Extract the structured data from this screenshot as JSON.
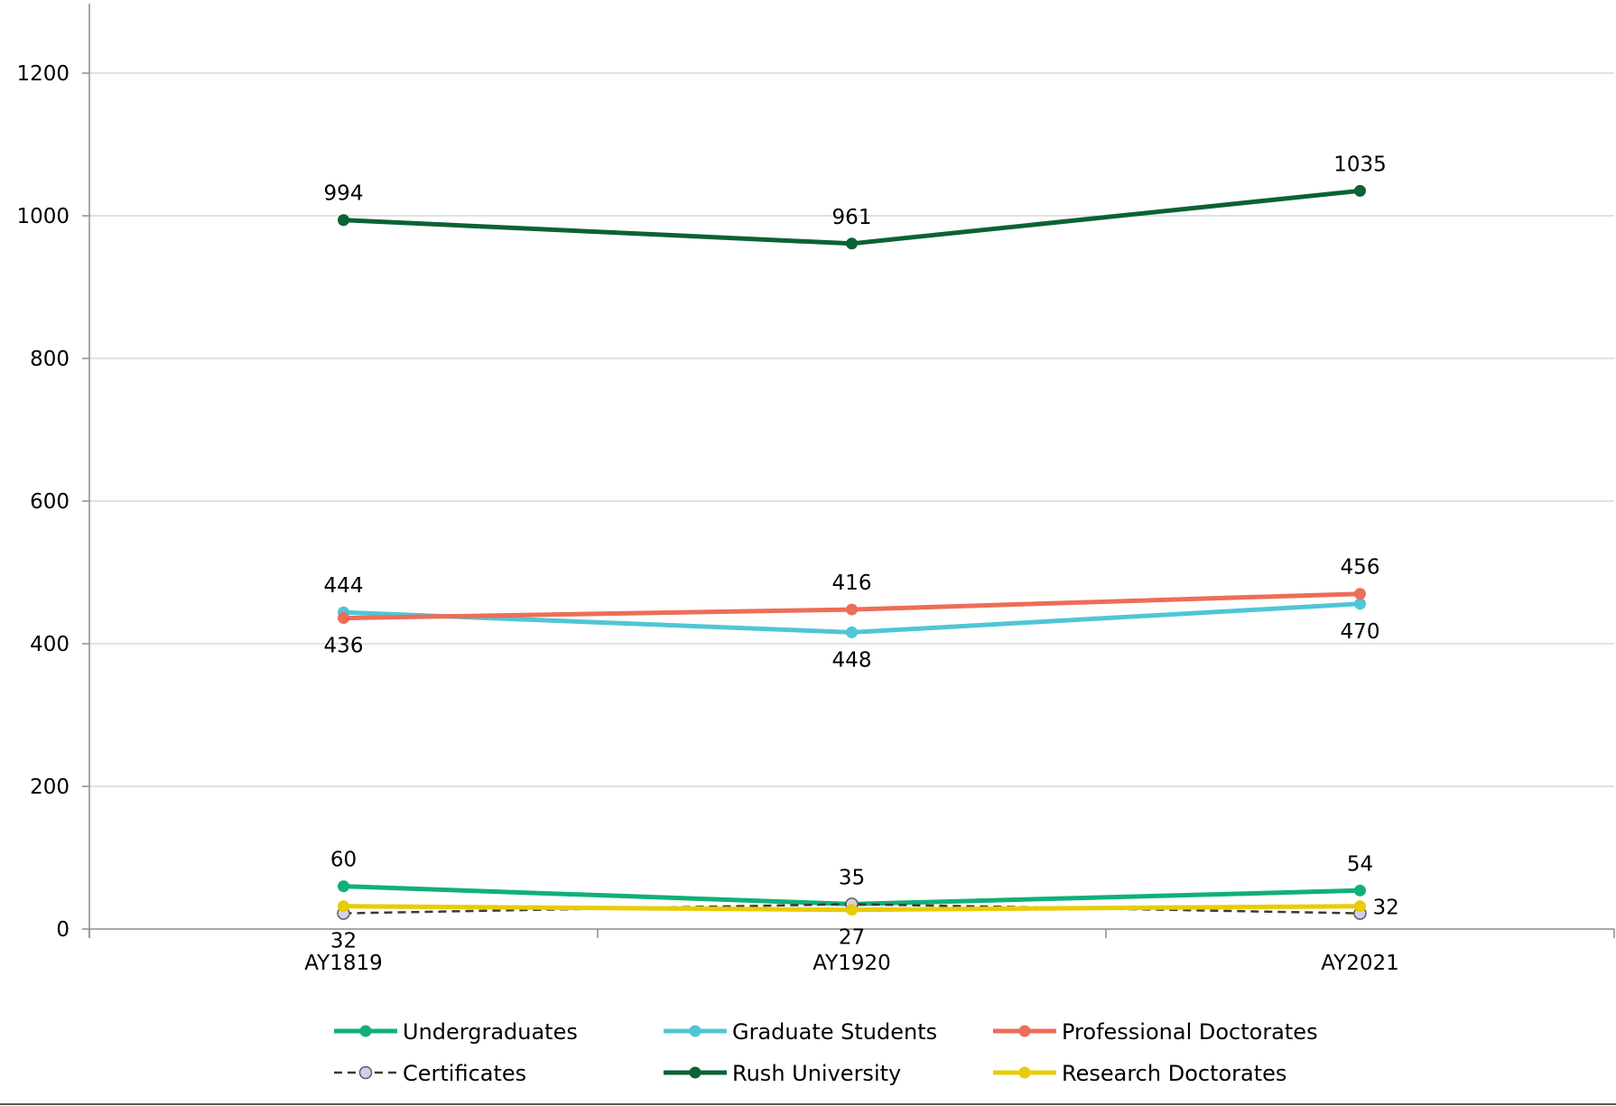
{
  "chart_data": {
    "type": "line",
    "title": "",
    "xlabel": "",
    "ylabel": "",
    "categories": [
      "AY1819",
      "AY1920",
      "AY2021"
    ],
    "ylim": [
      0,
      1200
    ],
    "yticks": [
      0,
      200,
      400,
      600,
      800,
      1000,
      1200
    ],
    "grid": true,
    "legend_position": "bottom",
    "series": [
      {
        "name": "Undergraduates",
        "values": [
          60,
          35,
          54
        ],
        "color": "#10b079",
        "dashed": false,
        "marker": "filled"
      },
      {
        "name": "Graduate Students",
        "values": [
          444,
          416,
          456
        ],
        "color": "#4fc6d6",
        "dashed": false,
        "marker": "filled"
      },
      {
        "name": "Professional Doctorates",
        "values": [
          436,
          448,
          470
        ],
        "color": "#ee6d57",
        "dashed": false,
        "marker": "filled"
      },
      {
        "name": "Certificates",
        "values": [
          22,
          35,
          22
        ],
        "color": "#3f3a2c",
        "dashed": true,
        "marker": "open",
        "marker_fill": "#d9cdef"
      },
      {
        "name": "Rush University",
        "values": [
          994,
          961,
          1035
        ],
        "color": "#0b6233",
        "dashed": false,
        "marker": "filled"
      },
      {
        "name": "Research Doctorates",
        "values": [
          32,
          27,
          32
        ],
        "color": "#e8cc05",
        "dashed": false,
        "marker": "filled"
      }
    ],
    "data_labels": [
      {
        "text": "994",
        "category": "AY1819",
        "y": 994,
        "place": "above"
      },
      {
        "text": "961",
        "category": "AY1920",
        "y": 961,
        "place": "above"
      },
      {
        "text": "1035",
        "category": "AY2021",
        "y": 1035,
        "place": "above"
      },
      {
        "text": "444",
        "category": "AY1819",
        "y": 444,
        "place": "above"
      },
      {
        "text": "416",
        "category": "AY1920",
        "y": 448,
        "place": "above"
      },
      {
        "text": "456",
        "category": "AY2021",
        "y": 470,
        "place": "above"
      },
      {
        "text": "436",
        "category": "AY1819",
        "y": 436,
        "place": "below"
      },
      {
        "text": "448",
        "category": "AY1920",
        "y": 416,
        "place": "below"
      },
      {
        "text": "470",
        "category": "AY2021",
        "y": 456,
        "place": "below"
      },
      {
        "text": "60",
        "category": "AY1819",
        "y": 60,
        "place": "above"
      },
      {
        "text": "35",
        "category": "AY1920",
        "y": 35,
        "place": "above"
      },
      {
        "text": "54",
        "category": "AY2021",
        "y": 54,
        "place": "above"
      },
      {
        "text": "32",
        "category": "AY1819",
        "y": 22,
        "place": "below"
      },
      {
        "text": "27",
        "category": "AY1920",
        "y": 27,
        "place": "below"
      },
      {
        "text": "32",
        "category": "AY2021",
        "y": 32,
        "place": "right"
      }
    ],
    "legend": {
      "rows": [
        [
          "Undergraduates",
          "Graduate Students",
          "Professional Doctorates"
        ],
        [
          "Certificates",
          "Rush University",
          "Research Doctorates"
        ]
      ]
    },
    "styles": {
      "axis_color": "#8c8c8c",
      "grid_color": "#d9d9d9"
    }
  }
}
